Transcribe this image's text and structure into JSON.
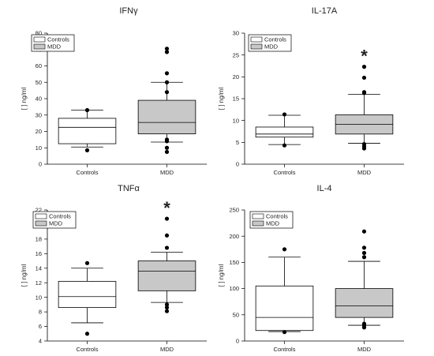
{
  "colors": {
    "controls_fill": "#ffffff",
    "mdd_fill": "#c8c8c8",
    "outline": "#000000",
    "outlier": "#000000"
  },
  "chart_data": [
    {
      "type": "box",
      "title": "IFNγ",
      "ylabel": "[ ] ng/ml",
      "ylim": [
        0,
        80
      ],
      "yticks": [
        0,
        10,
        20,
        30,
        40,
        50,
        60,
        70,
        80
      ],
      "categories": [
        "Controls",
        "MDD"
      ],
      "legend": [
        "Controls",
        "MDD"
      ],
      "legend_position": "top-left",
      "significance": "",
      "series": [
        {
          "name": "Controls",
          "q1": 12.5,
          "median": 22.5,
          "q3": 28,
          "whisker_low": 10.5,
          "whisker_high": 33,
          "outliers": [
            8.5,
            33
          ]
        },
        {
          "name": "MDD",
          "q1": 18.5,
          "median": 25.5,
          "q3": 39,
          "whisker_low": 13.5,
          "whisker_high": 50,
          "outliers": [
            7.5,
            10,
            14,
            15,
            44,
            50,
            55.5,
            68.5,
            70.5
          ]
        }
      ]
    },
    {
      "type": "box",
      "title": "IL-17A",
      "ylabel": "[ ] ng/ml",
      "ylim": [
        0,
        30
      ],
      "yticks": [
        0,
        5,
        10,
        15,
        20,
        25,
        30
      ],
      "categories": [
        "Controls",
        "MDD"
      ],
      "legend": [
        "Controls",
        "MDD"
      ],
      "legend_position": "top-left",
      "significance": "*",
      "series": [
        {
          "name": "Controls",
          "q1": 6.2,
          "median": 6.9,
          "q3": 8.5,
          "whisker_low": 4.5,
          "whisker_high": 11.2,
          "outliers": [
            4.3,
            11.4
          ]
        },
        {
          "name": "MDD",
          "q1": 6.9,
          "median": 9.1,
          "q3": 11.3,
          "whisker_low": 4.8,
          "whisker_high": 16,
          "outliers": [
            3.6,
            4.1,
            4.6,
            16.3,
            16.5,
            19.8,
            22.3
          ]
        }
      ]
    },
    {
      "type": "box",
      "title": "TNFα",
      "ylabel": "[ ] ng/ml",
      "ylim": [
        4,
        22
      ],
      "yticks": [
        4,
        6,
        8,
        10,
        12,
        14,
        16,
        18,
        20,
        22
      ],
      "categories": [
        "Controls",
        "MDD"
      ],
      "legend": [
        "Controls",
        "MDD"
      ],
      "legend_position": "top-left",
      "significance": "*",
      "series": [
        {
          "name": "Controls",
          "q1": 8.6,
          "median": 10.1,
          "q3": 12.2,
          "whisker_low": 6.5,
          "whisker_high": 14,
          "outliers": [
            5,
            14.7
          ]
        },
        {
          "name": "MDD",
          "q1": 10.9,
          "median": 13.6,
          "q3": 15,
          "whisker_low": 9.3,
          "whisker_high": 16.2,
          "outliers": [
            8.1,
            8.6,
            9,
            16.8,
            18.5,
            20.8
          ]
        }
      ]
    },
    {
      "type": "box",
      "title": "IL-4",
      "ylabel": "[ ] ng/ml",
      "ylim": [
        0,
        250
      ],
      "yticks": [
        0,
        50,
        100,
        150,
        200,
        250
      ],
      "categories": [
        "Controls",
        "MDD"
      ],
      "legend": [
        "Controls",
        "MDD"
      ],
      "legend_position": "top-left",
      "significance": "",
      "series": [
        {
          "name": "Controls",
          "q1": 20,
          "median": 45,
          "q3": 105,
          "whisker_low": 18,
          "whisker_high": 160,
          "outliers": [
            17,
            175
          ]
        },
        {
          "name": "MDD",
          "q1": 45,
          "median": 67,
          "q3": 100,
          "whisker_low": 30,
          "whisker_high": 152,
          "outliers": [
            26,
            30,
            33,
            160,
            168,
            178,
            209
          ]
        }
      ]
    }
  ]
}
